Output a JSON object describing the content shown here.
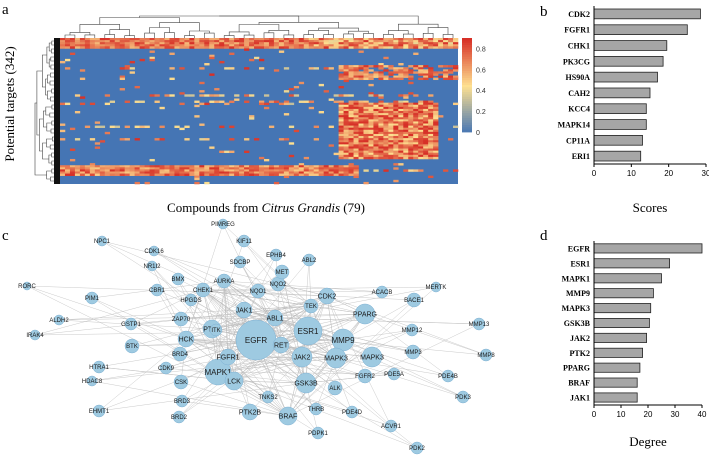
{
  "colors": {
    "bar_fill": "#a6a6a6",
    "node_fill": "#9ecae1",
    "edge": "#bdbdbd",
    "heat_low": "#4575b4",
    "heat_mid": "#fee090",
    "heat_high": "#d73027"
  },
  "panel_labels": {
    "a": "a",
    "b": "b",
    "c": "c",
    "d": "d"
  },
  "chart_data": [
    {
      "id": "a",
      "type": "heatmap",
      "ylabel": "Potential targets (342)",
      "xlabel_prefix": "Compounds from ",
      "xlabel_italic": "Citrus Grandis",
      "xlabel_suffix": " (79)",
      "colorbar_ticks": [
        "0",
        "0.2",
        "0.4",
        "0.6",
        "0.8"
      ],
      "colorbar_range": [
        0,
        0.9
      ],
      "n_rows": 342,
      "n_cols": 79
    },
    {
      "id": "b",
      "type": "bar",
      "orientation": "horizontal",
      "categories": [
        "CDK2",
        "FGFR1",
        "CHK1",
        "PK3CG",
        "HS90A",
        "CAH2",
        "KCC4",
        "MAPK14",
        "CP11A",
        "ERI1"
      ],
      "values": [
        28.5,
        25,
        19.5,
        18.5,
        17,
        15,
        14,
        14,
        13,
        12.5
      ],
      "xlim": [
        0,
        30
      ],
      "xticks": [
        "0",
        "10",
        "20",
        "30"
      ],
      "xlabel": "Scores"
    },
    {
      "id": "c",
      "type": "network",
      "nodes": [
        "EGFR",
        "ESR1",
        "MAPK1",
        "MMP9",
        "MAPK3",
        "GSK3B",
        "JAK2",
        "PTK2",
        "PPARG",
        "BRAF",
        "JAK1",
        "LCK",
        "HCK",
        "FGFR1",
        "RET",
        "ABL1",
        "CDK2",
        "TEK",
        "AURKA",
        "CHEK1",
        "NQO1",
        "NQO2",
        "MET",
        "ABL2",
        "EPHB4",
        "KIF11",
        "PIMREG",
        "SDCBP",
        "BMX",
        "CBR1",
        "HPGDS",
        "ZAP70",
        "ITK",
        "GSTP1",
        "BTK",
        "BRD4",
        "CDK9",
        "CSK",
        "BRD3",
        "BRD2",
        "PTK2B",
        "TNKS2",
        "THRB",
        "PDE4D",
        "ALK",
        "FGFR2",
        "PDE5A",
        "MAPK3",
        "MMP3",
        "MMP12",
        "MMP13",
        "MMP8",
        "PDE4B",
        "PDK3",
        "PDPK1",
        "PDK2",
        "ACVR1",
        "ACACB",
        "BACE1",
        "MERTK",
        "NPC1",
        "CDK16",
        "NR1I2",
        "RORC",
        "PIM1",
        "ALDH2",
        "IRAK4",
        "HTRA1",
        "HDAC8",
        "EHMT1"
      ]
    },
    {
      "id": "d",
      "type": "bar",
      "orientation": "horizontal",
      "categories": [
        "EGFR",
        "ESR1",
        "MAPK1",
        "MMP9",
        "MAPK3",
        "GSK3B",
        "JAK2",
        "PTK2",
        "PPARG",
        "BRAF",
        "JAK1"
      ],
      "values": [
        40,
        28,
        25,
        22,
        21,
        20.5,
        19.5,
        18,
        17,
        16,
        16
      ],
      "xlim": [
        0,
        40
      ],
      "xticks": [
        "0",
        "10",
        "20",
        "30",
        "40"
      ],
      "xlabel": "Degree"
    }
  ]
}
